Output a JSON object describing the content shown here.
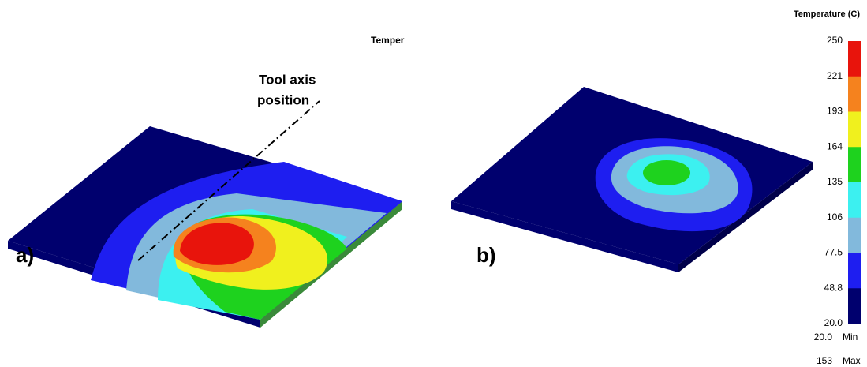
{
  "panel_a": {
    "label": "a)",
    "clipped_title": "Temper",
    "annotation": [
      "Tool axis",
      "position"
    ]
  },
  "panel_b": {
    "label": "b)"
  },
  "legend": {
    "title": "Temperature (C)",
    "ticks": [
      "250",
      "221",
      "193",
      "164",
      "135",
      "106",
      "77.5",
      "48.8",
      "20.0"
    ],
    "colors": [
      "#e8140c",
      "#f5821e",
      "#f0f01e",
      "#1ed21e",
      "#3cf0f0",
      "#82b9dc",
      "#1e1ef0",
      "#00006e"
    ],
    "min": {
      "value": "20.0",
      "label": "Min"
    },
    "max": {
      "value": "153",
      "label": "Max"
    }
  }
}
